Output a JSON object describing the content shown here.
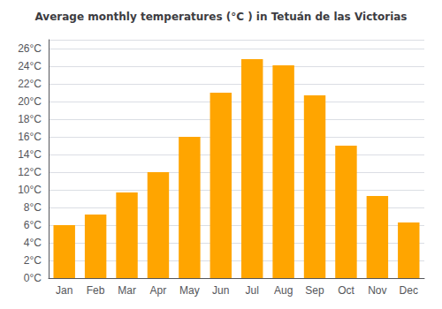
{
  "chart_data": {
    "type": "bar",
    "title": "Average monthly temperatures (°C ) in Tetuán de las Victorias",
    "categories": [
      "Jan",
      "Feb",
      "Mar",
      "Apr",
      "May",
      "Jun",
      "Jul",
      "Aug",
      "Sep",
      "Oct",
      "Nov",
      "Dec"
    ],
    "values": [
      6.0,
      7.2,
      9.7,
      12.0,
      16.0,
      21.0,
      24.8,
      24.1,
      20.7,
      15.0,
      9.3,
      6.3
    ],
    "color": "#FFA500",
    "ylim": [
      0,
      27
    ],
    "yticks": [
      {
        "value": 0,
        "label": "0°C"
      },
      {
        "value": 2,
        "label": "2°C"
      },
      {
        "value": 4,
        "label": "4°C"
      },
      {
        "value": 6,
        "label": "6°C"
      },
      {
        "value": 8,
        "label": "8°C"
      },
      {
        "value": 10,
        "label": "10°C"
      },
      {
        "value": 12,
        "label": "12°C"
      },
      {
        "value": 14,
        "label": "14°C"
      },
      {
        "value": 16,
        "label": "16°C"
      },
      {
        "value": 18,
        "label": "18°C"
      },
      {
        "value": 20,
        "label": "20°C"
      },
      {
        "value": 22,
        "label": "22°C"
      },
      {
        "value": 24,
        "label": "24°C"
      },
      {
        "value": 26,
        "label": "26°C"
      }
    ],
    "grid": true
  }
}
